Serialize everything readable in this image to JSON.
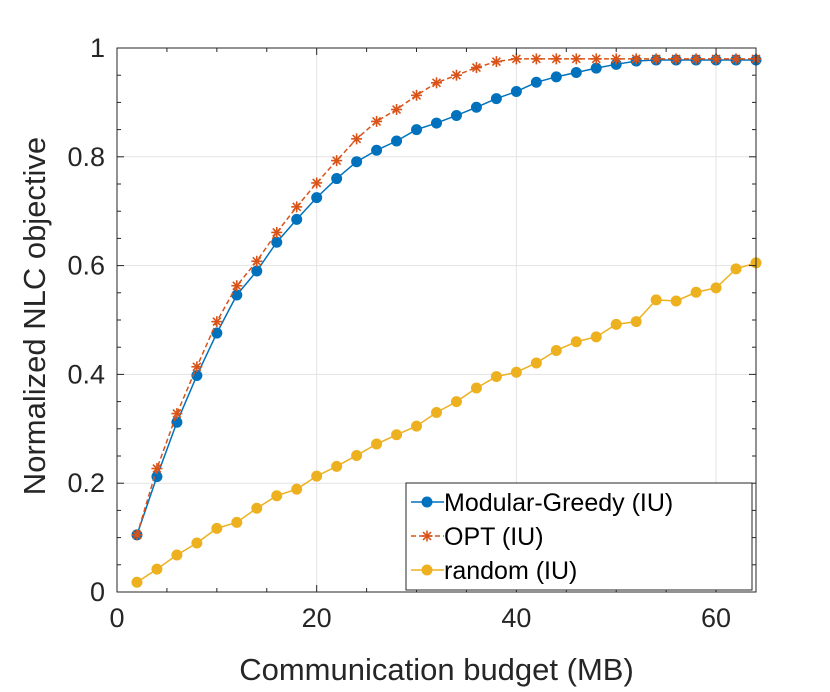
{
  "chart_data": {
    "type": "line",
    "xlabel": "Communication budget (MB)",
    "ylabel": "Normalized NLC objective",
    "xlim": [
      0,
      64
    ],
    "ylim": [
      0,
      1
    ],
    "x_ticks": [
      0,
      20,
      40,
      60
    ],
    "x_tick_labels": [
      "0",
      "20",
      "40",
      "60"
    ],
    "y_ticks": [
      0,
      0.2,
      0.4,
      0.6,
      0.8,
      1
    ],
    "y_tick_labels": [
      "0",
      "0.2",
      "0.4",
      "0.6",
      "0.8",
      "1"
    ],
    "grid": true,
    "legend_position": "bottom-right",
    "x": [
      2,
      4,
      6,
      8,
      10,
      12,
      14,
      16,
      18,
      20,
      22,
      24,
      26,
      28,
      30,
      32,
      34,
      36,
      38,
      40,
      42,
      44,
      46,
      48,
      50,
      52,
      54,
      56,
      58,
      60,
      62,
      64
    ],
    "series": [
      {
        "name": "Modular-Greedy (IU)",
        "color": "#0072BD",
        "marker": "circle",
        "line_style": "solid",
        "values": [
          0.105,
          0.212,
          0.312,
          0.398,
          0.476,
          0.546,
          0.59,
          0.643,
          0.685,
          0.725,
          0.76,
          0.791,
          0.812,
          0.829,
          0.85,
          0.862,
          0.876,
          0.891,
          0.907,
          0.92,
          0.937,
          0.947,
          0.955,
          0.963,
          0.97,
          0.976,
          0.978,
          0.978,
          0.978,
          0.978,
          0.978,
          0.978
        ]
      },
      {
        "name": "OPT (IU)",
        "color": "#D95319",
        "marker": "asterisk",
        "line_style": "dashed",
        "values": [
          0.105,
          0.227,
          0.328,
          0.414,
          0.497,
          0.563,
          0.608,
          0.661,
          0.708,
          0.752,
          0.793,
          0.833,
          0.865,
          0.887,
          0.913,
          0.936,
          0.95,
          0.964,
          0.975,
          0.98,
          0.98,
          0.98,
          0.98,
          0.98,
          0.98,
          0.98,
          0.98,
          0.98,
          0.98,
          0.98,
          0.98,
          0.98
        ]
      },
      {
        "name": "random (IU)",
        "color": "#EDB120",
        "marker": "circle",
        "line_style": "solid",
        "values": [
          0.018,
          0.042,
          0.068,
          0.09,
          0.117,
          0.128,
          0.154,
          0.177,
          0.189,
          0.213,
          0.231,
          0.251,
          0.272,
          0.289,
          0.305,
          0.33,
          0.35,
          0.375,
          0.396,
          0.404,
          0.421,
          0.444,
          0.46,
          0.469,
          0.492,
          0.497,
          0.537,
          0.535,
          0.551,
          0.559,
          0.594,
          0.605
        ]
      }
    ]
  }
}
